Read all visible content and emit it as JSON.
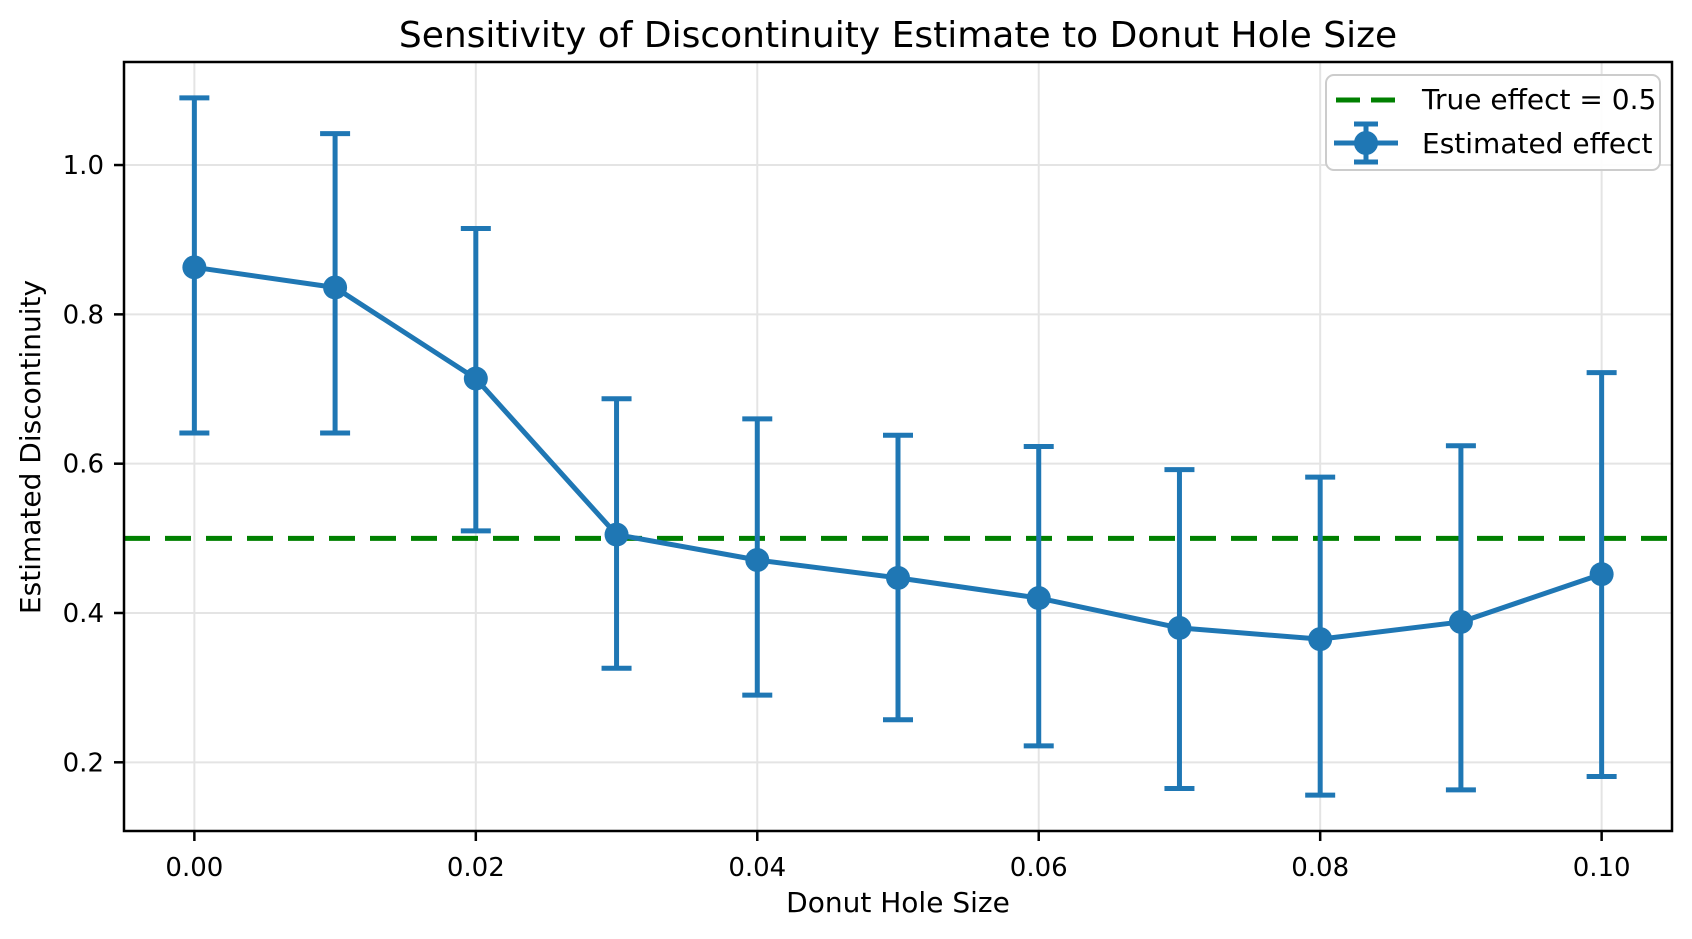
{
  "chart_data": {
    "type": "line",
    "title": "Sensitivity of Discontinuity Estimate to Donut Hole Size",
    "xlabel": "Donut Hole Size",
    "ylabel": "Estimated Discontinuity",
    "xlim": [
      -0.005,
      0.105
    ],
    "ylim": [
      0.108,
      1.138
    ],
    "grid": true,
    "grid_color": "#e4e4e4",
    "background_color": "#ffffff",
    "x_ticks": [
      0.0,
      0.02,
      0.04,
      0.06,
      0.08,
      0.1
    ],
    "x_tick_labels": [
      "0.00",
      "0.02",
      "0.04",
      "0.06",
      "0.08",
      "0.10"
    ],
    "y_ticks": [
      0.2,
      0.4,
      0.6,
      0.8,
      1.0
    ],
    "y_tick_labels": [
      "0.2",
      "0.4",
      "0.6",
      "0.8",
      "1.0"
    ],
    "legend_position": "upper right",
    "reference_line": {
      "label": "True effect = 0.5",
      "value": 0.5,
      "color": "#008000",
      "style": "dashed"
    },
    "series": [
      {
        "name": "Estimated effect",
        "color": "#1f77b4",
        "marker": "circle",
        "x": [
          0.0,
          0.01,
          0.02,
          0.03,
          0.04,
          0.05,
          0.06,
          0.07,
          0.08,
          0.09,
          0.1
        ],
        "y": [
          0.863,
          0.836,
          0.714,
          0.505,
          0.471,
          0.447,
          0.42,
          0.38,
          0.365,
          0.388,
          0.452
        ],
        "err_low": [
          0.641,
          0.641,
          0.51,
          0.326,
          0.29,
          0.257,
          0.222,
          0.165,
          0.156,
          0.163,
          0.181
        ],
        "err_high": [
          1.09,
          1.042,
          0.915,
          0.687,
          0.66,
          0.638,
          0.623,
          0.592,
          0.582,
          0.624,
          0.722
        ]
      }
    ]
  }
}
